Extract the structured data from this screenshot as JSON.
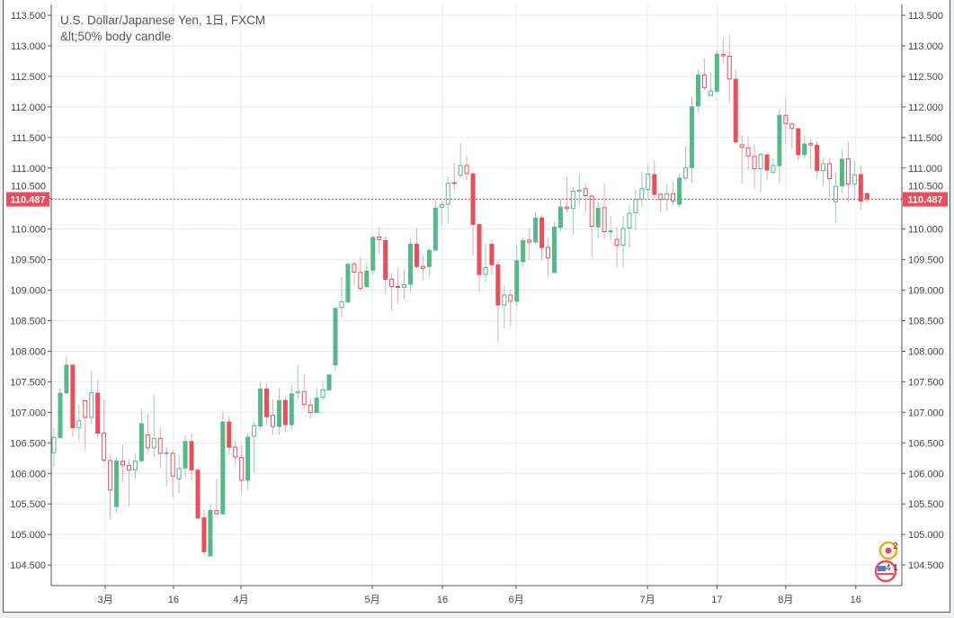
{
  "header": {
    "title": "U.S. Dollar/Japanese Yen, 1日, FXCM",
    "subtitle": "&lt;50% body candle"
  },
  "legend_badges": {
    "top": "2",
    "bottom": "4 1"
  },
  "chart_data": {
    "type": "candlestick",
    "title": "U.S. Dollar/Japanese Yen, 1日, FXCM",
    "subtitle": "&lt;50% body candle",
    "ylim": [
      104.3,
      113.65
    ],
    "yticks": [
      "113.500",
      "113.000",
      "112.500",
      "112.000",
      "111.500",
      "111.000",
      "110.500",
      "110.000",
      "109.500",
      "109.000",
      "108.500",
      "108.000",
      "107.500",
      "107.000",
      "106.500",
      "106.000",
      "105.500",
      "105.000",
      "104.500"
    ],
    "xticks": [
      {
        "label": "3月",
        "index": 8.2
      },
      {
        "label": "16",
        "index": 19.1
      },
      {
        "label": "4月",
        "index": 29.9
      },
      {
        "label": "5月",
        "index": 50.9
      },
      {
        "label": "16",
        "index": 62.1
      },
      {
        "label": "6月",
        "index": 73.9
      },
      {
        "label": "7月",
        "index": 94.9
      },
      {
        "label": "17",
        "index": 106
      },
      {
        "label": "8月",
        "index": 117
      },
      {
        "label": "16",
        "index": 128.2
      }
    ],
    "last_price": "110.487",
    "colors": {
      "up": "#53b987",
      "down": "#eb4d5c",
      "up_wick": "#9fc7c9",
      "down_wick": "#f4a3ab",
      "grid": "#e1ecf2",
      "last": "#eb4d5c"
    },
    "ohlc": [
      [
        106.33,
        106.74,
        106.11,
        106.59
      ],
      [
        106.58,
        107.39,
        106.56,
        107.32
      ],
      [
        107.31,
        107.91,
        107.29,
        107.78
      ],
      [
        107.78,
        107.78,
        106.6,
        106.74
      ],
      [
        106.74,
        107.13,
        106.52,
        106.86
      ],
      [
        107.19,
        107.19,
        106.39,
        106.91
      ],
      [
        106.91,
        107.68,
        106.8,
        107.32
      ],
      [
        107.32,
        107.53,
        106.58,
        106.65
      ],
      [
        106.66,
        107.21,
        106.17,
        106.21
      ],
      [
        106.21,
        106.31,
        105.25,
        105.72
      ],
      [
        105.45,
        106.25,
        105.36,
        106.21
      ],
      [
        106.2,
        106.47,
        105.86,
        106.13
      ],
      [
        106.13,
        106.24,
        105.46,
        106.05
      ],
      [
        106.05,
        106.32,
        105.9,
        106.2
      ],
      [
        106.2,
        107.06,
        106.17,
        106.82
      ],
      [
        106.63,
        106.97,
        106.31,
        106.41
      ],
      [
        106.41,
        107.29,
        106.27,
        106.57
      ],
      [
        106.57,
        106.75,
        106.08,
        106.32
      ],
      [
        106.32,
        106.43,
        105.79,
        106.34
      ],
      [
        106.33,
        106.38,
        105.61,
        105.95
      ],
      [
        105.9,
        106.31,
        105.68,
        106.08
      ],
      [
        106.08,
        106.62,
        105.94,
        106.53
      ],
      [
        106.53,
        106.65,
        105.88,
        106.05
      ],
      [
        106.06,
        106.09,
        105.26,
        105.26
      ],
      [
        105.28,
        105.41,
        104.65,
        104.71
      ],
      [
        104.64,
        105.49,
        104.64,
        105.4
      ],
      [
        105.39,
        105.91,
        105.33,
        105.33
      ],
      [
        105.33,
        107.01,
        105.33,
        106.85
      ],
      [
        106.85,
        106.93,
        106.3,
        106.42
      ],
      [
        106.43,
        106.54,
        106.14,
        106.26
      ],
      [
        106.26,
        106.46,
        105.67,
        105.88
      ],
      [
        105.88,
        106.66,
        105.72,
        106.6
      ],
      [
        106.6,
        106.85,
        106.01,
        106.78
      ],
      [
        106.77,
        107.5,
        106.73,
        107.39
      ],
      [
        107.39,
        107.48,
        106.79,
        106.92
      ],
      [
        106.95,
        107.21,
        106.63,
        106.76
      ],
      [
        106.76,
        107.4,
        106.63,
        107.2
      ],
      [
        107.2,
        107.25,
        106.67,
        106.79
      ],
      [
        106.79,
        107.44,
        106.72,
        107.31
      ],
      [
        107.31,
        107.78,
        107.22,
        107.34
      ],
      [
        107.34,
        107.62,
        107.06,
        107.12
      ],
      [
        107.12,
        107.23,
        106.89,
        106.99
      ],
      [
        106.99,
        107.4,
        106.99,
        107.24
      ],
      [
        107.24,
        107.52,
        107.2,
        107.37
      ],
      [
        107.36,
        107.62,
        107.36,
        107.62
      ],
      [
        107.77,
        108.71,
        107.67,
        108.71
      ],
      [
        108.71,
        109.21,
        108.55,
        108.81
      ],
      [
        108.8,
        109.46,
        108.79,
        109.43
      ],
      [
        109.43,
        109.48,
        109.08,
        109.29
      ],
      [
        109.29,
        109.55,
        108.98,
        109.02
      ],
      [
        109.05,
        109.46,
        109.03,
        109.32
      ],
      [
        109.32,
        109.9,
        109.25,
        109.87
      ],
      [
        109.87,
        110.03,
        109.6,
        109.82
      ],
      [
        109.82,
        109.88,
        108.94,
        109.17
      ],
      [
        109.18,
        109.28,
        108.66,
        109.05
      ],
      [
        109.06,
        109.37,
        108.78,
        109.04
      ],
      [
        109.04,
        109.36,
        108.84,
        109.09
      ],
      [
        109.09,
        109.85,
        108.97,
        109.76
      ],
      [
        109.76,
        110.02,
        109.34,
        109.38
      ],
      [
        109.39,
        109.58,
        109.16,
        109.35
      ],
      [
        109.38,
        109.69,
        109.22,
        109.66
      ],
      [
        109.65,
        110.47,
        109.65,
        110.35
      ],
      [
        110.35,
        110.46,
        110.06,
        110.4
      ],
      [
        110.4,
        110.86,
        110.09,
        110.75
      ],
      [
        110.76,
        111.08,
        110.62,
        110.74
      ],
      [
        110.87,
        111.41,
        110.84,
        111.04
      ],
      [
        111.04,
        111.2,
        110.8,
        110.9
      ],
      [
        110.91,
        110.93,
        109.57,
        110.07
      ],
      [
        110.08,
        110.1,
        108.97,
        109.25
      ],
      [
        109.25,
        109.76,
        109.13,
        109.37
      ],
      [
        109.76,
        109.83,
        109.25,
        109.41
      ],
      [
        109.42,
        109.48,
        108.14,
        108.75
      ],
      [
        108.75,
        109.08,
        108.37,
        108.92
      ],
      [
        108.92,
        109.01,
        108.4,
        108.81
      ],
      [
        108.81,
        109.75,
        108.74,
        109.49
      ],
      [
        109.46,
        109.86,
        109.38,
        109.82
      ],
      [
        109.82,
        110.01,
        109.49,
        109.78
      ],
      [
        109.78,
        110.27,
        109.78,
        110.19
      ],
      [
        110.19,
        110.23,
        109.49,
        109.69
      ],
      [
        109.7,
        109.86,
        109.22,
        109.52
      ],
      [
        109.28,
        110.12,
        109.28,
        110.04
      ],
      [
        110.02,
        110.5,
        109.97,
        110.37
      ],
      [
        110.36,
        110.85,
        110.27,
        110.33
      ],
      [
        110.33,
        110.69,
        109.91,
        110.62
      ],
      [
        110.61,
        110.9,
        110.38,
        110.64
      ],
      [
        110.66,
        110.74,
        110.29,
        110.54
      ],
      [
        110.54,
        110.57,
        109.54,
        110.04
      ],
      [
        110.03,
        110.46,
        109.85,
        110.35
      ],
      [
        110.35,
        110.75,
        109.84,
        109.95
      ],
      [
        109.95,
        110.22,
        109.81,
        109.97
      ],
      [
        109.83,
        110.04,
        109.37,
        109.73
      ],
      [
        109.73,
        110.22,
        109.37,
        110.01
      ],
      [
        110.01,
        110.4,
        109.7,
        110.26
      ],
      [
        110.26,
        110.65,
        109.98,
        110.48
      ],
      [
        110.48,
        110.94,
        110.37,
        110.66
      ],
      [
        110.64,
        111.06,
        110.49,
        110.9
      ],
      [
        110.9,
        111.13,
        110.51,
        110.56
      ],
      [
        110.57,
        110.6,
        110.28,
        110.48
      ],
      [
        110.48,
        110.74,
        110.3,
        110.58
      ],
      [
        110.58,
        110.78,
        110.38,
        110.45
      ],
      [
        110.4,
        110.9,
        110.36,
        110.84
      ],
      [
        110.83,
        111.36,
        110.79,
        111.0
      ],
      [
        111.0,
        112.18,
        110.76,
        112.01
      ],
      [
        112.01,
        112.62,
        111.91,
        112.53
      ],
      [
        112.52,
        112.79,
        112.28,
        112.31
      ],
      [
        112.18,
        112.56,
        112.18,
        112.26
      ],
      [
        112.25,
        112.93,
        112.22,
        112.87
      ],
      [
        112.86,
        113.13,
        112.71,
        112.83
      ],
      [
        112.83,
        113.18,
        112.06,
        112.45
      ],
      [
        112.46,
        112.62,
        111.39,
        111.42
      ],
      [
        111.38,
        111.54,
        110.75,
        111.33
      ],
      [
        111.33,
        111.51,
        110.96,
        111.19
      ],
      [
        111.19,
        111.38,
        110.67,
        110.98
      ],
      [
        110.98,
        111.25,
        110.6,
        111.22
      ],
      [
        111.22,
        111.25,
        110.8,
        110.96
      ],
      [
        110.92,
        111.16,
        110.89,
        111.04
      ],
      [
        111.03,
        111.96,
        110.75,
        111.87
      ],
      [
        111.86,
        112.15,
        111.39,
        111.72
      ],
      [
        111.72,
        111.75,
        111.31,
        111.64
      ],
      [
        111.65,
        111.65,
        111.11,
        111.21
      ],
      [
        111.21,
        111.53,
        111.15,
        111.4
      ],
      [
        111.4,
        111.47,
        110.99,
        111.37
      ],
      [
        111.38,
        111.44,
        110.84,
        110.95
      ],
      [
        110.95,
        111.18,
        110.71,
        111.07
      ],
      [
        111.07,
        111.16,
        110.52,
        110.82
      ],
      [
        110.44,
        110.94,
        110.11,
        110.7
      ],
      [
        110.7,
        111.31,
        110.59,
        111.15
      ],
      [
        111.15,
        111.43,
        110.44,
        110.73
      ],
      [
        110.73,
        111.12,
        110.47,
        110.89
      ],
      [
        110.9,
        111.04,
        110.31,
        110.45
      ],
      [
        110.59,
        110.59,
        110.43,
        110.487
      ]
    ]
  }
}
